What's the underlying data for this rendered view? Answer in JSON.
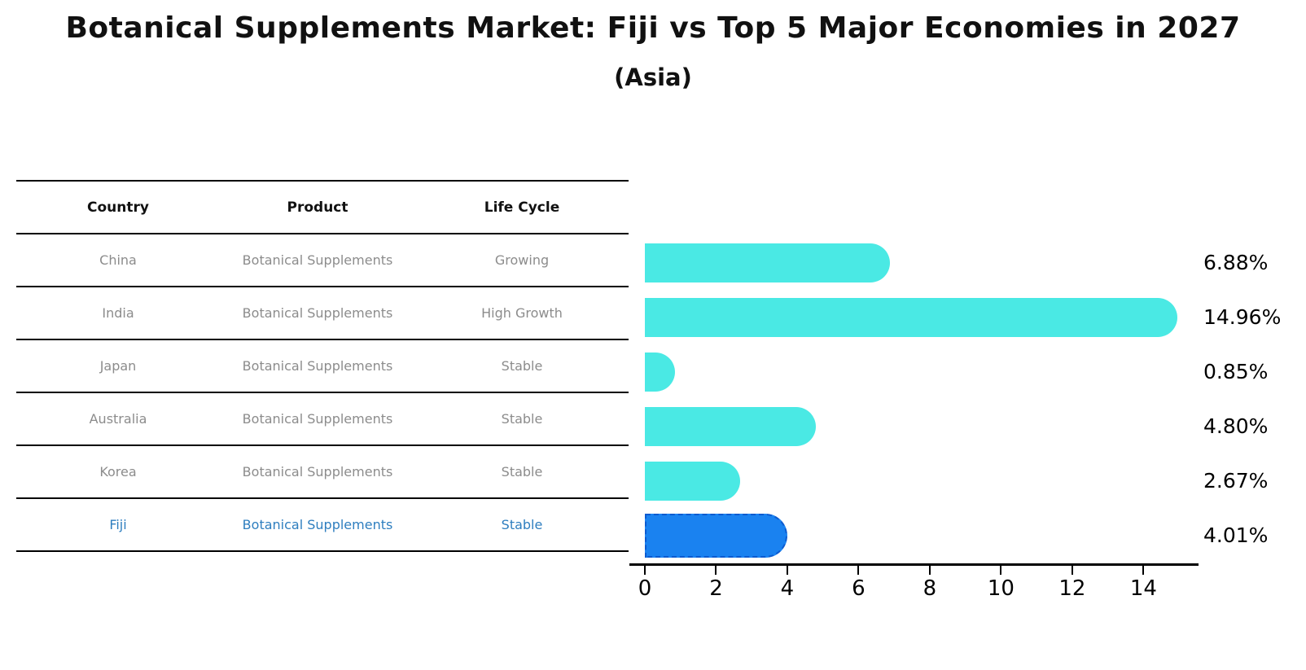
{
  "title": "Botanical Supplements Market: Fiji vs Top 5 Major Economies in 2027",
  "subtitle": "(Asia)",
  "table": {
    "headers": [
      "Country",
      "Product",
      "Life Cycle"
    ],
    "rows": [
      {
        "country": "China",
        "product": "Botanical Supplements",
        "life_cycle": "Growing",
        "highlight": false
      },
      {
        "country": "India",
        "product": "Botanical Supplements",
        "life_cycle": "High Growth",
        "highlight": false
      },
      {
        "country": "Japan",
        "product": "Botanical Supplements",
        "life_cycle": "Stable",
        "highlight": false
      },
      {
        "country": "Australia",
        "product": "Botanical Supplements",
        "life_cycle": "Stable",
        "highlight": false
      },
      {
        "country": "Korea",
        "product": "Botanical Supplements",
        "life_cycle": "Stable",
        "highlight": false
      },
      {
        "country": "Fiji",
        "product": "Botanical Supplements",
        "life_cycle": "Stable",
        "highlight": true
      }
    ]
  },
  "chart_data": {
    "type": "bar",
    "orientation": "horizontal",
    "categories": [
      "China",
      "India",
      "Japan",
      "Australia",
      "Korea",
      "Fiji"
    ],
    "values": [
      6.88,
      14.96,
      0.85,
      4.8,
      2.67,
      4.01
    ],
    "value_labels": [
      "6.88%",
      "14.96%",
      "0.85%",
      "4.80%",
      "2.67%",
      "4.01%"
    ],
    "x_ticks": [
      0,
      2,
      4,
      6,
      8,
      10,
      12,
      14
    ],
    "xlim": [
      0,
      15.5
    ],
    "grid": false,
    "legend_position": "none",
    "bar_color": "#4AE9E4",
    "highlight_bar_color": "#1A82F0",
    "highlight_border_color": "#0C5BD0",
    "highlight_index": 5
  },
  "colors": {
    "title_text": "#111111",
    "cell_text": "#8C8C8C",
    "highlight_row_text": "#2E7EBF",
    "line_color": "#000000"
  }
}
